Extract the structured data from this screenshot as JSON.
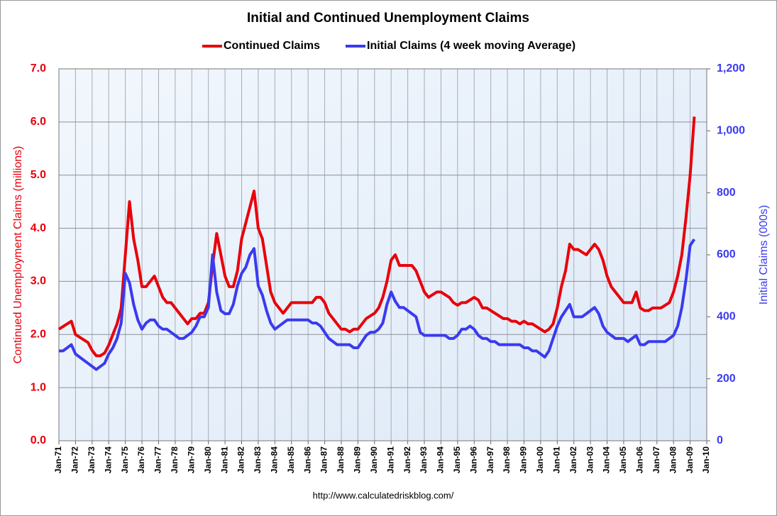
{
  "chart_data": {
    "type": "line",
    "title": "Initial and Continued Unemployment Claims",
    "ylabel": "Continued Unemployment Claims (millions)",
    "y2label": "Initial Claims (000s)",
    "source": "http://www.calculatedriskblog.com/",
    "grid": true,
    "legend": "top",
    "xlim": [
      1971,
      2010
    ],
    "xticks": [
      {
        "value": 1971,
        "label": "Jan-71"
      },
      {
        "value": 1972,
        "label": "Jan-72"
      },
      {
        "value": 1973,
        "label": "Jan-73"
      },
      {
        "value": 1974,
        "label": "Jan-74"
      },
      {
        "value": 1975,
        "label": "Jan-75"
      },
      {
        "value": 1976,
        "label": "Jan-76"
      },
      {
        "value": 1977,
        "label": "Jan-77"
      },
      {
        "value": 1978,
        "label": "Jan-78"
      },
      {
        "value": 1979,
        "label": "Jan-79"
      },
      {
        "value": 1980,
        "label": "Jan-80"
      },
      {
        "value": 1981,
        "label": "Jan-81"
      },
      {
        "value": 1982,
        "label": "Jan-82"
      },
      {
        "value": 1983,
        "label": "Jan-83"
      },
      {
        "value": 1984,
        "label": "Jan-84"
      },
      {
        "value": 1985,
        "label": "Jan-85"
      },
      {
        "value": 1986,
        "label": "Jan-86"
      },
      {
        "value": 1987,
        "label": "Jan-87"
      },
      {
        "value": 1988,
        "label": "Jan-88"
      },
      {
        "value": 1989,
        "label": "Jan-89"
      },
      {
        "value": 1990,
        "label": "Jan-90"
      },
      {
        "value": 1991,
        "label": "Jan-91"
      },
      {
        "value": 1992,
        "label": "Jan-92"
      },
      {
        "value": 1993,
        "label": "Jan-93"
      },
      {
        "value": 1994,
        "label": "Jan-94"
      },
      {
        "value": 1995,
        "label": "Jan-95"
      },
      {
        "value": 1996,
        "label": "Jan-96"
      },
      {
        "value": 1997,
        "label": "Jan-97"
      },
      {
        "value": 1998,
        "label": "Jan-98"
      },
      {
        "value": 1999,
        "label": "Jan-99"
      },
      {
        "value": 2000,
        "label": "Jan-00"
      },
      {
        "value": 2001,
        "label": "Jan-01"
      },
      {
        "value": 2002,
        "label": "Jan-02"
      },
      {
        "value": 2003,
        "label": "Jan-03"
      },
      {
        "value": 2004,
        "label": "Jan-04"
      },
      {
        "value": 2005,
        "label": "Jan-05"
      },
      {
        "value": 2006,
        "label": "Jan-06"
      },
      {
        "value": 2007,
        "label": "Jan-07"
      },
      {
        "value": 2008,
        "label": "Jan-08"
      },
      {
        "value": 2009,
        "label": "Jan-09"
      },
      {
        "value": 2010,
        "label": "Jan-10"
      }
    ],
    "ylim": [
      0,
      7
    ],
    "yticks": [
      {
        "value": 0,
        "label": "0.0"
      },
      {
        "value": 1,
        "label": "1.0"
      },
      {
        "value": 2,
        "label": "2.0"
      },
      {
        "value": 3,
        "label": "3.0"
      },
      {
        "value": 4,
        "label": "4.0"
      },
      {
        "value": 5,
        "label": "5.0"
      },
      {
        "value": 6,
        "label": "6.0"
      },
      {
        "value": 7,
        "label": "7.0"
      }
    ],
    "y2lim": [
      0,
      1200
    ],
    "y2ticks": [
      0,
      200,
      400,
      600,
      800,
      {
        "value": 1000,
        "label": "1,000"
      },
      {
        "value": 1200,
        "label": "1,200"
      }
    ],
    "x": [
      1971,
      1971.25,
      1971.5,
      1971.75,
      1972,
      1972.25,
      1972.5,
      1972.75,
      1973,
      1973.25,
      1973.5,
      1973.75,
      1974,
      1974.25,
      1974.5,
      1974.75,
      1975,
      1975.25,
      1975.5,
      1975.75,
      1976,
      1976.25,
      1976.5,
      1976.75,
      1977,
      1977.25,
      1977.5,
      1977.75,
      1978,
      1978.25,
      1978.5,
      1978.75,
      1979,
      1979.25,
      1979.5,
      1979.75,
      1980,
      1980.25,
      1980.5,
      1980.75,
      1981,
      1981.25,
      1981.5,
      1981.75,
      1982,
      1982.25,
      1982.5,
      1982.75,
      1983,
      1983.25,
      1983.5,
      1983.75,
      1984,
      1984.25,
      1984.5,
      1984.75,
      1985,
      1985.25,
      1985.5,
      1985.75,
      1986,
      1986.25,
      1986.5,
      1986.75,
      1987,
      1987.25,
      1987.5,
      1987.75,
      1988,
      1988.25,
      1988.5,
      1988.75,
      1989,
      1989.25,
      1989.5,
      1989.75,
      1990,
      1990.25,
      1990.5,
      1990.75,
      1991,
      1991.25,
      1991.5,
      1991.75,
      1992,
      1992.25,
      1992.5,
      1992.75,
      1993,
      1993.25,
      1993.5,
      1993.75,
      1994,
      1994.25,
      1994.5,
      1994.75,
      1995,
      1995.25,
      1995.5,
      1995.75,
      1996,
      1996.25,
      1996.5,
      1996.75,
      1997,
      1997.25,
      1997.5,
      1997.75,
      1998,
      1998.25,
      1998.5,
      1998.75,
      1999,
      1999.25,
      1999.5,
      1999.75,
      2000,
      2000.25,
      2000.5,
      2000.75,
      2001,
      2001.25,
      2001.5,
      2001.75,
      2002,
      2002.25,
      2002.5,
      2002.75,
      2003,
      2003.25,
      2003.5,
      2003.75,
      2004,
      2004.25,
      2004.5,
      2004.75,
      2005,
      2005.25,
      2005.5,
      2005.75,
      2006,
      2006.25,
      2006.5,
      2006.75,
      2007,
      2007.25,
      2007.5,
      2007.75,
      2008,
      2008.25,
      2008.5,
      2008.75,
      2009,
      2009.25
    ],
    "series": [
      {
        "name": "Continued Claims",
        "color": "#e8000b",
        "axis": "y",
        "values": [
          2.1,
          2.15,
          2.2,
          2.25,
          2.0,
          1.95,
          1.9,
          1.85,
          1.7,
          1.6,
          1.6,
          1.65,
          1.8,
          2.0,
          2.2,
          2.5,
          3.5,
          4.5,
          3.8,
          3.4,
          2.9,
          2.9,
          3.0,
          3.1,
          2.9,
          2.7,
          2.6,
          2.6,
          2.5,
          2.4,
          2.3,
          2.2,
          2.3,
          2.3,
          2.4,
          2.4,
          2.6,
          3.3,
          3.9,
          3.5,
          3.1,
          2.9,
          2.9,
          3.2,
          3.8,
          4.1,
          4.4,
          4.7,
          4.0,
          3.8,
          3.3,
          2.8,
          2.6,
          2.5,
          2.4,
          2.5,
          2.6,
          2.6,
          2.6,
          2.6,
          2.6,
          2.6,
          2.7,
          2.7,
          2.6,
          2.4,
          2.3,
          2.2,
          2.1,
          2.1,
          2.05,
          2.1,
          2.1,
          2.2,
          2.3,
          2.35,
          2.4,
          2.5,
          2.7,
          3.0,
          3.4,
          3.5,
          3.3,
          3.3,
          3.3,
          3.3,
          3.2,
          3.0,
          2.8,
          2.7,
          2.75,
          2.8,
          2.8,
          2.75,
          2.7,
          2.6,
          2.55,
          2.6,
          2.6,
          2.65,
          2.7,
          2.65,
          2.5,
          2.5,
          2.45,
          2.4,
          2.35,
          2.3,
          2.3,
          2.25,
          2.25,
          2.2,
          2.25,
          2.2,
          2.2,
          2.15,
          2.1,
          2.05,
          2.1,
          2.2,
          2.5,
          2.9,
          3.2,
          3.7,
          3.6,
          3.6,
          3.55,
          3.5,
          3.6,
          3.7,
          3.6,
          3.4,
          3.1,
          2.9,
          2.8,
          2.7,
          2.6,
          2.6,
          2.6,
          2.8,
          2.5,
          2.45,
          2.45,
          2.5,
          2.5,
          2.5,
          2.55,
          2.6,
          2.8,
          3.1,
          3.5,
          4.2,
          5.0,
          6.1
        ]
      },
      {
        "name": "Initial Claims (4 week moving Average)",
        "color": "#3a3af0",
        "axis": "y2",
        "values": [
          290,
          290,
          300,
          310,
          280,
          270,
          260,
          250,
          240,
          230,
          240,
          250,
          280,
          300,
          330,
          380,
          540,
          510,
          440,
          390,
          360,
          380,
          390,
          390,
          370,
          360,
          360,
          350,
          340,
          330,
          330,
          340,
          350,
          370,
          400,
          400,
          430,
          600,
          480,
          420,
          410,
          410,
          440,
          500,
          540,
          560,
          600,
          620,
          500,
          470,
          420,
          380,
          360,
          370,
          380,
          390,
          390,
          390,
          390,
          390,
          390,
          380,
          380,
          370,
          350,
          330,
          320,
          310,
          310,
          310,
          310,
          300,
          300,
          320,
          340,
          350,
          350,
          360,
          380,
          440,
          480,
          450,
          430,
          430,
          420,
          410,
          400,
          350,
          340,
          340,
          340,
          340,
          340,
          340,
          330,
          330,
          340,
          360,
          360,
          370,
          360,
          340,
          330,
          330,
          320,
          320,
          310,
          310,
          310,
          310,
          310,
          310,
          300,
          300,
          290,
          290,
          280,
          270,
          290,
          330,
          370,
          400,
          420,
          440,
          400,
          400,
          400,
          410,
          420,
          430,
          410,
          370,
          350,
          340,
          330,
          330,
          330,
          320,
          330,
          340,
          310,
          310,
          320,
          320,
          320,
          320,
          320,
          330,
          340,
          370,
          430,
          520,
          630,
          650
        ]
      }
    ]
  }
}
